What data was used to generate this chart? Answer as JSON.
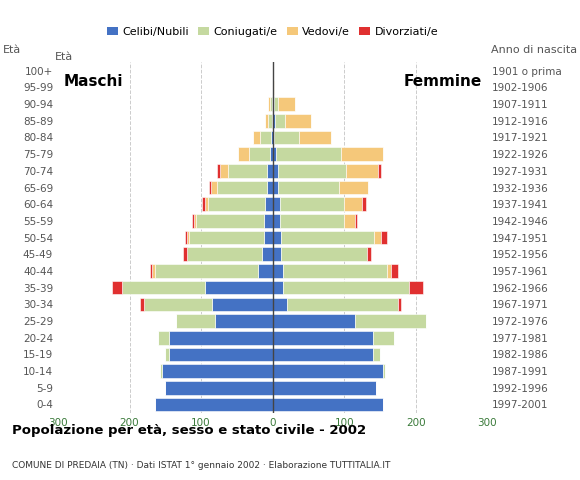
{
  "age_groups": [
    "0-4",
    "5-9",
    "10-14",
    "15-19",
    "20-24",
    "25-29",
    "30-34",
    "35-39",
    "40-44",
    "45-49",
    "50-54",
    "55-59",
    "60-64",
    "65-69",
    "70-74",
    "75-79",
    "80-84",
    "85-89",
    "90-94",
    "95-99",
    "100+"
  ],
  "birth_years": [
    "1997-2001",
    "1992-1996",
    "1987-1991",
    "1982-1986",
    "1977-1981",
    "1972-1976",
    "1967-1971",
    "1962-1966",
    "1957-1961",
    "1952-1956",
    "1947-1951",
    "1942-1946",
    "1937-1941",
    "1932-1936",
    "1927-1931",
    "1922-1926",
    "1917-1921",
    "1912-1916",
    "1907-1911",
    "1902-1906",
    "1901 o prima"
  ],
  "males": {
    "celibe": [
      165,
      150,
      155,
      145,
      145,
      80,
      85,
      95,
      20,
      15,
      12,
      12,
      10,
      8,
      8,
      3,
      2,
      1,
      1,
      0,
      0
    ],
    "coniugato": [
      0,
      0,
      2,
      5,
      15,
      55,
      95,
      115,
      145,
      105,
      105,
      95,
      80,
      70,
      55,
      30,
      15,
      5,
      2,
      0,
      0
    ],
    "vedovo": [
      0,
      0,
      0,
      0,
      0,
      0,
      0,
      0,
      3,
      0,
      2,
      3,
      5,
      8,
      10,
      15,
      10,
      5,
      3,
      0,
      0
    ],
    "divorziato": [
      0,
      0,
      0,
      0,
      0,
      0,
      5,
      15,
      3,
      5,
      3,
      3,
      3,
      3,
      5,
      0,
      0,
      0,
      0,
      0,
      0
    ]
  },
  "females": {
    "nubile": [
      155,
      145,
      155,
      140,
      140,
      115,
      20,
      15,
      15,
      12,
      12,
      10,
      10,
      8,
      8,
      5,
      2,
      3,
      2,
      0,
      0
    ],
    "coniugata": [
      0,
      0,
      2,
      10,
      30,
      100,
      155,
      175,
      145,
      120,
      130,
      90,
      90,
      85,
      95,
      90,
      35,
      15,
      5,
      0,
      0
    ],
    "vedova": [
      0,
      0,
      0,
      0,
      0,
      0,
      0,
      0,
      5,
      0,
      10,
      15,
      25,
      40,
      45,
      60,
      45,
      35,
      25,
      2,
      0
    ],
    "divorziata": [
      0,
      0,
      0,
      0,
      0,
      0,
      5,
      20,
      10,
      5,
      8,
      3,
      5,
      0,
      3,
      0,
      0,
      0,
      0,
      0,
      0
    ]
  },
  "colors": {
    "celibe": "#4472c4",
    "coniugato": "#c5d9a0",
    "vedovo": "#f5c87a",
    "divorziato": "#e03030"
  },
  "xlim": 300,
  "title": "Popolazione per età, sesso e stato civile - 2002",
  "subtitle": "COMUNE DI PREDAIA (TN) · Dati ISTAT 1° gennaio 2002 · Elaborazione TUTTITALIA.IT",
  "legend_labels": [
    "Celibi/Nubili",
    "Coniugati/e",
    "Vedovi/e",
    "Divorziati/e"
  ],
  "label_maschi": "Maschi",
  "label_femmine": "Femmine",
  "label_eta": "Età",
  "label_anno": "Anno di nascita"
}
